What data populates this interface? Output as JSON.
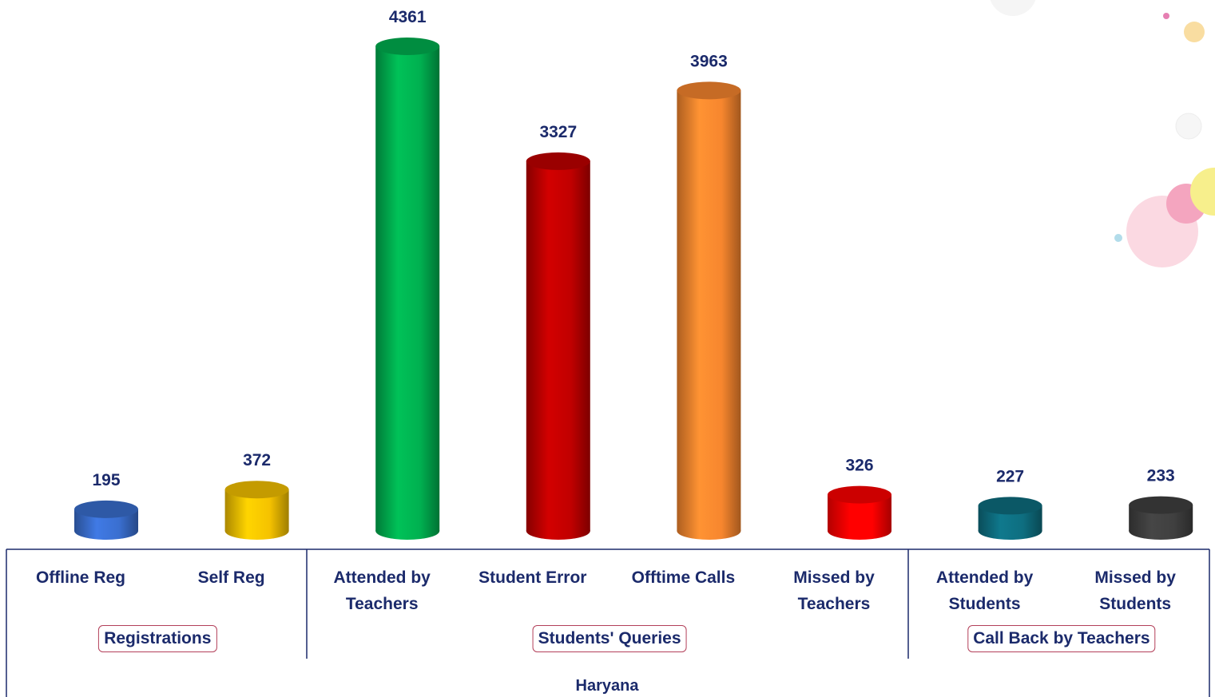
{
  "chart_data": {
    "type": "bar",
    "style": "cylinder",
    "xlabel": "Haryana",
    "groups": [
      {
        "label": "Registrations",
        "categories": [
          "Offline Reg",
          "Self Reg"
        ],
        "values": [
          195,
          372
        ],
        "colors": [
          "#3a6fd0",
          "#f5c200"
        ]
      },
      {
        "label": "Students' Queries",
        "categories": [
          "Attended by Teachers",
          "Student Error",
          "Offtime Calls",
          "Missed by Teachers"
        ],
        "values": [
          4361,
          3327,
          3963,
          326
        ],
        "colors": [
          "#00b050",
          "#c00000",
          "#f7862e",
          "#ff0000"
        ]
      },
      {
        "label": "Call Back by Teachers",
        "categories": [
          "Attended by Students",
          "Missed by Students"
        ],
        "values": [
          227,
          233
        ],
        "colors": [
          "#0e6e80",
          "#404040"
        ]
      }
    ]
  }
}
